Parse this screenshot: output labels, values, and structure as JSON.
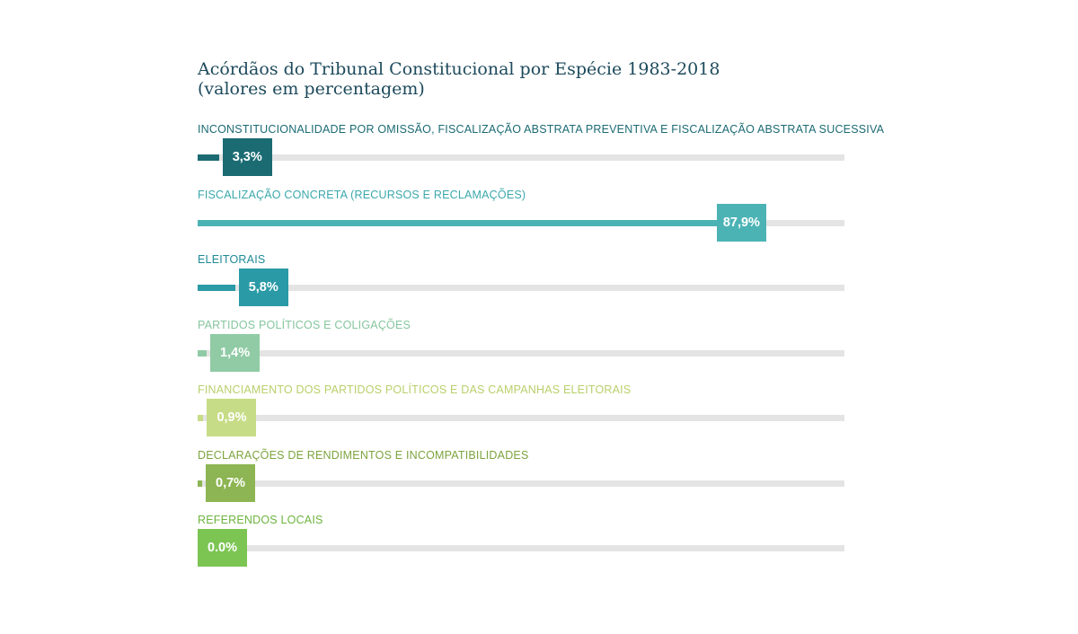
{
  "chart_data": {
    "type": "bar",
    "orientation": "horizontal",
    "title_line1": "Acórdãos do Tribunal Constitucional por Espécie 1983-2018",
    "title_line2": "(valores em percentagem)",
    "xlim": [
      0,
      100
    ],
    "grid": false,
    "bars": [
      {
        "category": "INCONSTITUCIONALIDADE POR OMISSÃO, FISCALIZAÇÃO ABSTRATA PREVENTIVA E FISCALIZAÇÃO ABSTRATA SUCESSIVA",
        "value": 3.3,
        "label": "3,3%",
        "color": "#1b6b73",
        "label_color": "#1b6b73"
      },
      {
        "category": "FISCALIZAÇÃO CONCRETA (RECURSOS E RECLAMAÇÕES)",
        "value": 87.9,
        "label": "87,9%",
        "color": "#4cb3b5",
        "label_color": "#3aa8ab"
      },
      {
        "category": "ELEITORAIS",
        "value": 5.8,
        "label": "5,8%",
        "color": "#2a9aa6",
        "label_color": "#1f8a96"
      },
      {
        "category": "PARTIDOS POLÍTICOS E COLIGAÇÕES",
        "value": 1.4,
        "label": "1,4%",
        "color": "#90cba5",
        "label_color": "#86c59e"
      },
      {
        "category": "FINANCIAMENTO DOS PARTIDOS POLÍTICOS E DAS CAMPANHAS ELEITORAIS",
        "value": 0.9,
        "label": "0,9%",
        "color": "#c7dc86",
        "label_color": "#b8d06b"
      },
      {
        "category": "DECLARAÇÕES DE RENDIMENTOS E INCOMPATIBILIDADES",
        "value": 0.7,
        "label": "0,7%",
        "color": "#8db553",
        "label_color": "#7da43f"
      },
      {
        "category": "REFERENDOS LOCAIS",
        "value": 0.0,
        "label": "0.0%",
        "color": "#7cc553",
        "label_color": "#6db43f"
      }
    ]
  }
}
